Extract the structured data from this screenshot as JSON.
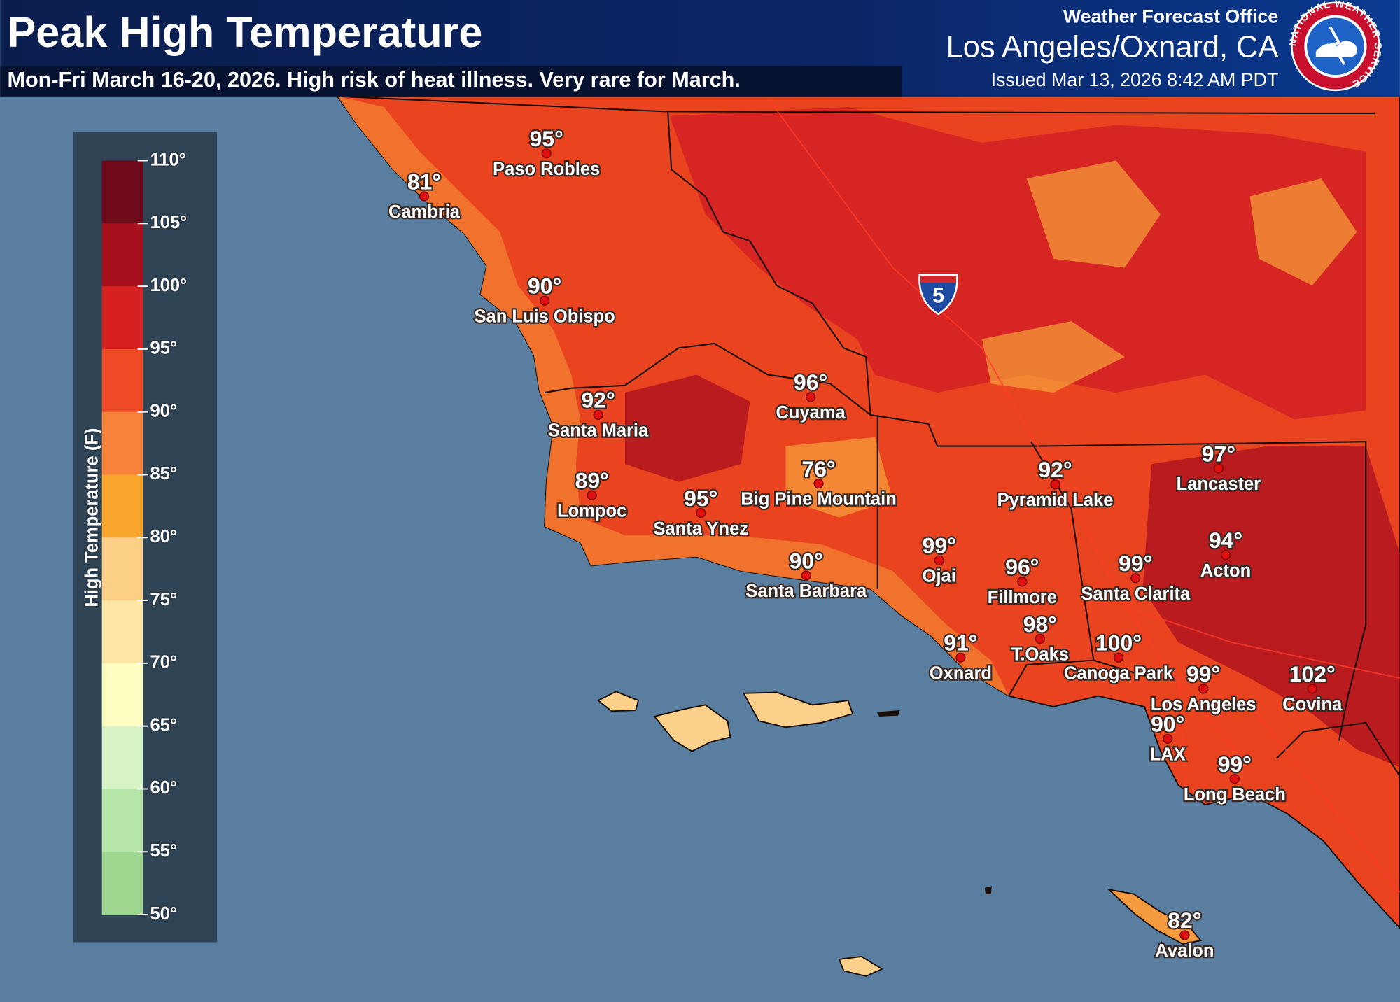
{
  "header": {
    "title": "Peak High Temperature",
    "subtitle": "Mon-Fri March 16-20, 2026. High risk of heat illness. Very rare for March.",
    "office_label": "Weather Forecast Office",
    "office": "Los Angeles/Oxnard, CA",
    "issued": "Issued Mar 13, 2026 8:42 AM PDT",
    "logo_text": "NATIONAL WEATHER SERVICE"
  },
  "legend": {
    "title": "High Temperature (F)",
    "ticks": [
      "110°",
      "105°",
      "100°",
      "95°",
      "90°",
      "85°",
      "80°",
      "75°",
      "70°",
      "65°",
      "60°",
      "55°",
      "50°"
    ],
    "colors": [
      "#6e0a1a",
      "#a8101e",
      "#d61f1f",
      "#ee4a25",
      "#f7843a",
      "#f8a72c",
      "#fccf86",
      "#fee6a6",
      "#ffffc2",
      "#d8f4c6",
      "#b6e5a8",
      "#9fd68f"
    ]
  },
  "map": {
    "interstate": "5",
    "cities": [
      {
        "name": "Paso Robles",
        "temp": "95°"
      },
      {
        "name": "Cambria",
        "temp": "81°"
      },
      {
        "name": "San Luis Obispo",
        "temp": "90°"
      },
      {
        "name": "Santa Maria",
        "temp": "92°"
      },
      {
        "name": "Cuyama",
        "temp": "96°"
      },
      {
        "name": "Lompoc",
        "temp": "89°"
      },
      {
        "name": "Santa Ynez",
        "temp": "95°"
      },
      {
        "name": "Big Pine Mountain",
        "temp": "76°"
      },
      {
        "name": "Santa Barbara",
        "temp": "90°"
      },
      {
        "name": "Pyramid Lake",
        "temp": "92°"
      },
      {
        "name": "Lancaster",
        "temp": "97°"
      },
      {
        "name": "Ojai",
        "temp": "99°"
      },
      {
        "name": "Fillmore",
        "temp": "96°"
      },
      {
        "name": "Santa Clarita",
        "temp": "99°"
      },
      {
        "name": "Acton",
        "temp": "94°"
      },
      {
        "name": "T.Oaks",
        "temp": "98°"
      },
      {
        "name": "Oxnard",
        "temp": "91°"
      },
      {
        "name": "Canoga Park",
        "temp": "100°"
      },
      {
        "name": "Los Angeles",
        "temp": "99°"
      },
      {
        "name": "Covina",
        "temp": "102°"
      },
      {
        "name": "LAX",
        "temp": "90°"
      },
      {
        "name": "Long Beach",
        "temp": "99°"
      },
      {
        "name": "Avalon",
        "temp": "82°"
      }
    ]
  }
}
